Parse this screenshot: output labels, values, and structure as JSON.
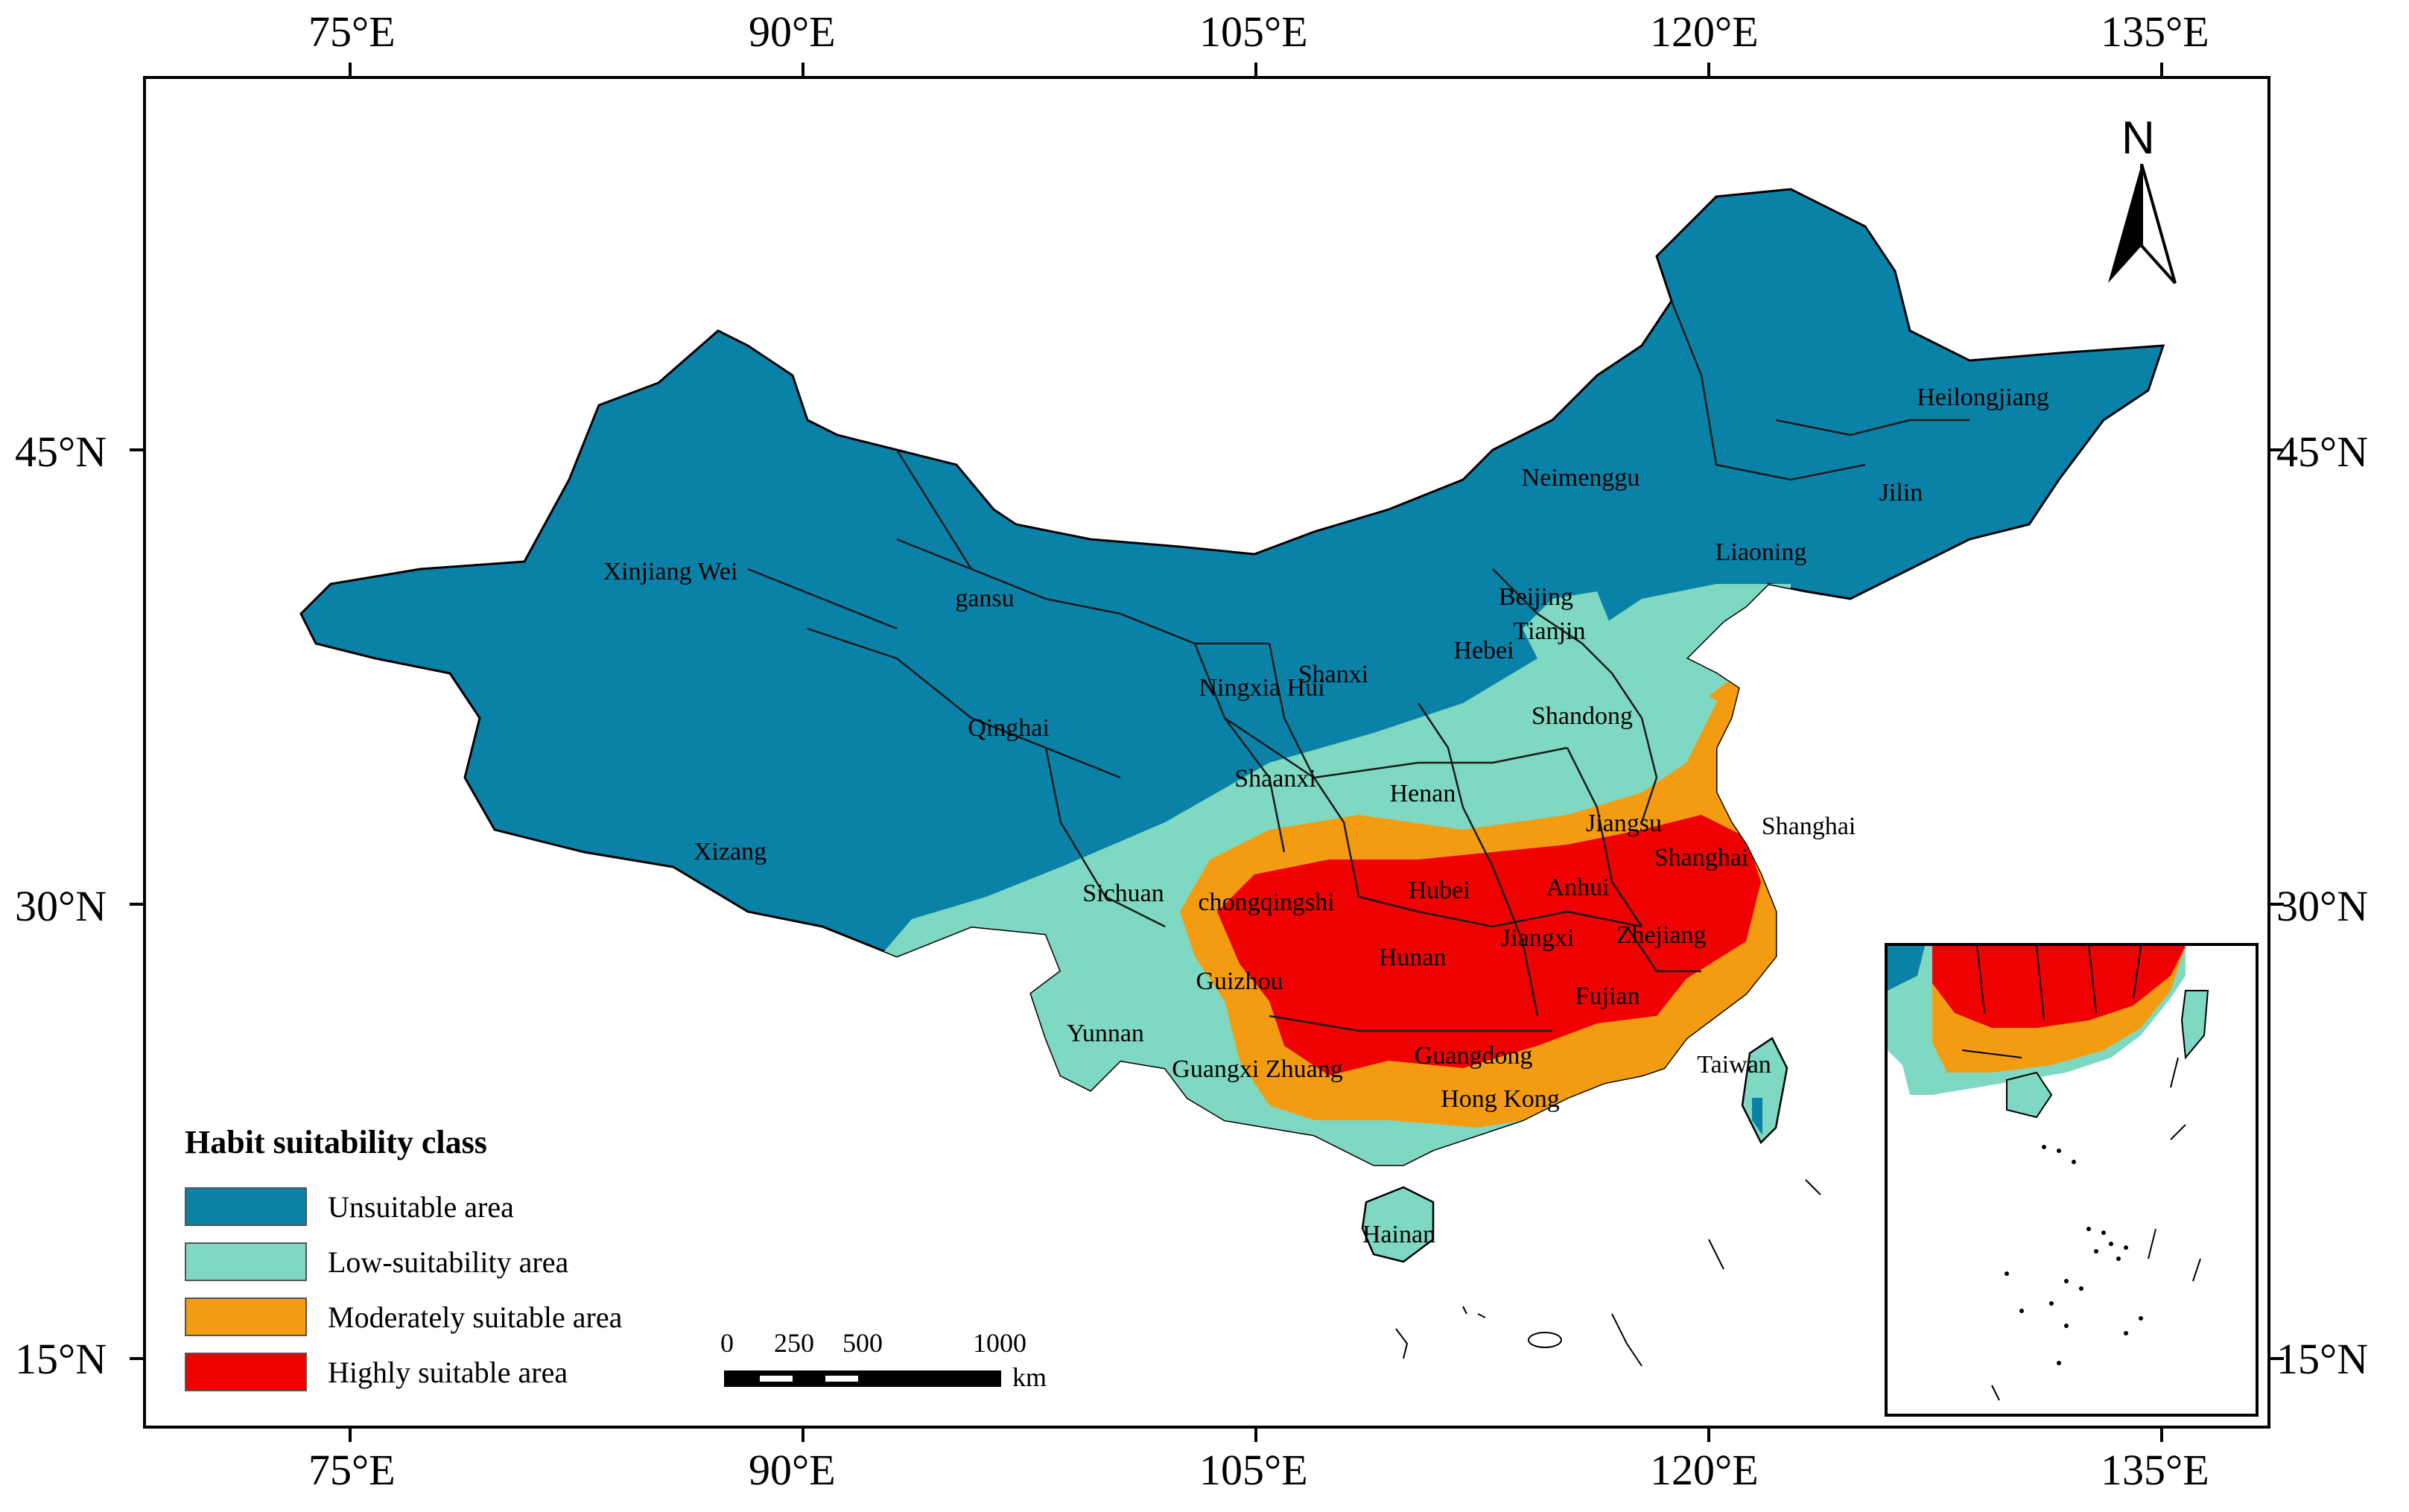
{
  "axes": {
    "x_top": [
      "75°E",
      "90°E",
      "105°E",
      "120°E",
      "135°E"
    ],
    "x_bottom": [
      "75°E",
      "90°E",
      "105°E",
      "120°E",
      "135°E"
    ],
    "y_left": [
      "45°N",
      "30°N",
      "15°N"
    ],
    "y_right": [
      "45°N",
      "30°N",
      "15°N"
    ]
  },
  "provinces": [
    "Heilongjiang",
    "Jilin",
    "Liaoning",
    "Neimenggu",
    "Beijing",
    "Tianjin",
    "Hebei",
    "Shanxi",
    "Shandong",
    "Xinjiang Wei",
    "gansu",
    "Ningxia Hui",
    "Qinghai",
    "Xizang",
    "Shaanxi",
    "Henan",
    "Jiangsu",
    "Shanghai",
    "Anhui",
    "Hubei",
    "Sichuan",
    "chongqingshi",
    "Zhejiang",
    "Hunan",
    "Jiangxi",
    "Guizhou",
    "Yunnan",
    "Fujian",
    "Taiwan",
    "Guangxi Zhuang",
    "Guangdong",
    "Hong Kong",
    "Hainan",
    "Shanghai"
  ],
  "legend": {
    "title": "Habit suitability class",
    "items": [
      {
        "label": "Unsuitable area",
        "color": "#0a82a8"
      },
      {
        "label": "Low-suitability area",
        "color": "#7ed8c2"
      },
      {
        "label": "Moderately suitable area",
        "color": "#f39c12"
      },
      {
        "label": "Highly suitable area",
        "color": "#f00000"
      }
    ]
  },
  "scalebar": {
    "labels": [
      "0",
      "250",
      "500",
      "1000"
    ],
    "unit": "km"
  },
  "north_arrow": {
    "letter": "N"
  }
}
